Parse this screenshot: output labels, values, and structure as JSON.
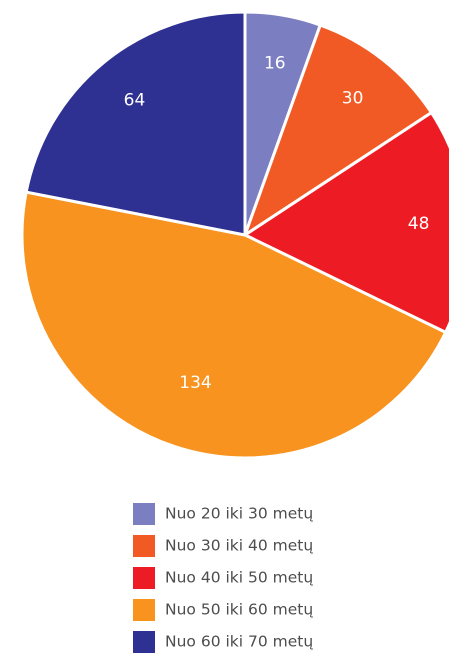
{
  "chart_data": {
    "type": "pie",
    "categories": [
      "Nuo 20 iki 30 metų",
      "Nuo 30 iki 40 metų",
      "Nuo 40 iki 50 metų",
      "Nuo 50 iki 60 metų",
      "Nuo 60 iki 70 metų"
    ],
    "values": [
      16,
      30,
      48,
      134,
      64
    ],
    "colors": [
      "#7b7fc2",
      "#f15a24",
      "#ed1c24",
      "#f7931e",
      "#2e3192"
    ]
  }
}
